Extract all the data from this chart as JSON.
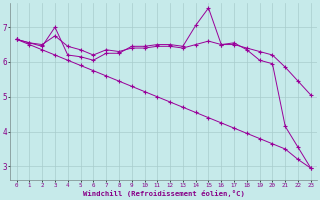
{
  "xlabel": "Windchill (Refroidissement éolien,°C)",
  "background_color": "#c6eaea",
  "grid_color": "#a8cccc",
  "line_color": "#990099",
  "x_ticks": [
    0,
    1,
    2,
    3,
    4,
    5,
    6,
    7,
    8,
    9,
    10,
    11,
    12,
    13,
    14,
    15,
    16,
    17,
    18,
    19,
    20,
    21,
    22,
    23
  ],
  "y_ticks": [
    3,
    4,
    5,
    6,
    7
  ],
  "xlim": [
    -0.5,
    23.5
  ],
  "ylim": [
    2.6,
    7.7
  ],
  "series1_x": [
    0,
    1,
    2,
    3,
    4,
    5,
    6,
    7,
    8,
    9,
    10,
    11,
    12,
    13,
    14,
    15,
    16,
    17,
    18,
    19,
    20,
    21,
    22,
    23
  ],
  "series1_y": [
    6.65,
    6.55,
    6.45,
    7.0,
    6.2,
    6.15,
    6.05,
    6.25,
    6.25,
    6.45,
    6.45,
    6.5,
    6.5,
    6.45,
    7.05,
    7.55,
    6.5,
    6.55,
    6.35,
    6.05,
    5.95,
    4.15,
    3.55,
    2.95
  ],
  "series2_x": [
    0,
    1,
    2,
    3,
    4,
    5,
    6,
    7,
    8,
    9,
    10,
    11,
    12,
    13,
    14,
    15,
    16,
    17,
    18,
    19,
    20,
    21,
    22,
    23
  ],
  "series2_y": [
    6.65,
    6.55,
    6.5,
    6.75,
    6.45,
    6.35,
    6.2,
    6.35,
    6.3,
    6.4,
    6.4,
    6.45,
    6.45,
    6.4,
    6.5,
    6.6,
    6.5,
    6.5,
    6.4,
    6.3,
    6.2,
    5.85,
    5.45,
    5.05
  ],
  "series3_x": [
    0,
    1,
    2,
    3,
    4,
    5,
    6,
    7,
    8,
    9,
    10,
    11,
    12,
    13,
    14,
    15,
    16,
    17,
    18,
    19,
    20,
    21,
    22,
    23
  ],
  "series3_y": [
    6.65,
    6.5,
    6.35,
    6.2,
    6.05,
    5.9,
    5.75,
    5.6,
    5.45,
    5.3,
    5.15,
    5.0,
    4.85,
    4.7,
    4.55,
    4.4,
    4.25,
    4.1,
    3.95,
    3.8,
    3.65,
    3.5,
    3.2,
    2.95
  ]
}
